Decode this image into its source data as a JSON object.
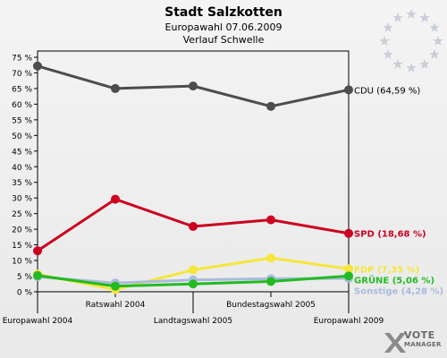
{
  "chart_data": {
    "type": "line",
    "title": "Stadt Salzkotten",
    "subtitle": "Europawahl 07.06.2009",
    "subtitle2": "Verlauf Schwelle",
    "categories": [
      "Europawahl 2004",
      "Ratswahl 2004",
      "Landtagswahl 2005",
      "Bundestagswahl 2005",
      "Europawahl 2009"
    ],
    "ylim": [
      0,
      77
    ],
    "yticks": [
      "0 %",
      "5 %",
      "10 %",
      "15 %",
      "20 %",
      "25 %",
      "30 %",
      "35 %",
      "40 %",
      "45 %",
      "50 %",
      "55 %",
      "60 %",
      "65 %",
      "70 %",
      "75 %"
    ],
    "grid": false,
    "series": [
      {
        "name": "CDU",
        "label": "CDU (64,59 %)",
        "color": "#4d4d4d",
        "labelColor": "#000000",
        "values": [
          72.2,
          65.0,
          65.8,
          59.3,
          64.59
        ]
      },
      {
        "name": "SPD",
        "label": "SPD (18,68 %)",
        "color": "#cc0020",
        "labelColor": "#cc0020",
        "values": [
          13.1,
          29.6,
          20.9,
          23.0,
          18.68
        ]
      },
      {
        "name": "FDP",
        "label": "FDP (7,35 %)",
        "color": "#f5e63a",
        "labelColor": "#f5e63a",
        "values": [
          5.6,
          0.7,
          7.0,
          10.8,
          7.35
        ]
      },
      {
        "name": "Sonstige",
        "label": "Sonstige (4,28 %)",
        "color": "#aabbdd",
        "labelColor": "#aabbdd",
        "values": [
          4.8,
          2.8,
          3.8,
          4.2,
          4.28
        ]
      },
      {
        "name": "GRÜNE",
        "label": "GRÜNE (5,06 %)",
        "color": "#22bb22",
        "labelColor": "#22bb22",
        "values": [
          5.2,
          1.8,
          2.5,
          3.3,
          5.06
        ]
      }
    ]
  },
  "branding": {
    "logo_line1": "VOTE",
    "logo_line2": "MANAGER"
  }
}
